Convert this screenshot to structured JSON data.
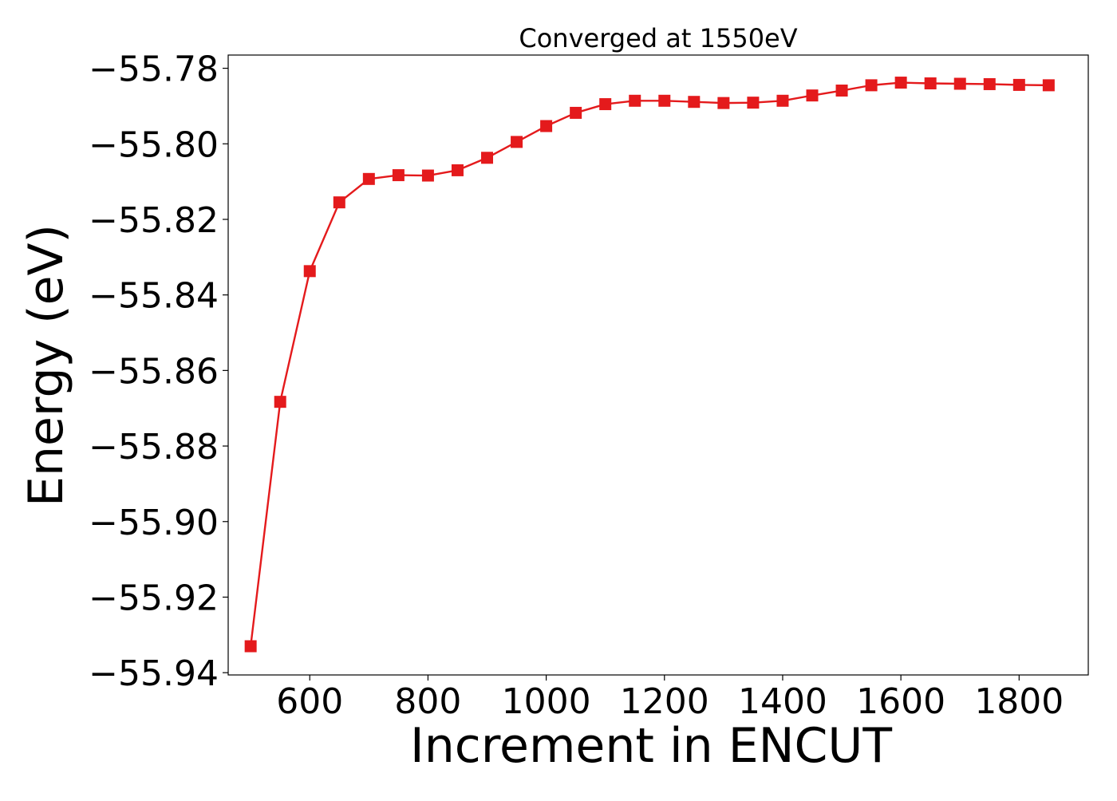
{
  "chart_data": {
    "type": "line",
    "title": "Converged at 1550eV",
    "xlabel": "Increment in ENCUT",
    "ylabel": "Energy (eV)",
    "xlim": [
      462,
      1917
    ],
    "ylim": [
      -55.9406,
      -55.7765
    ],
    "xticks": [
      600,
      800,
      1000,
      1200,
      1400,
      1600,
      1800
    ],
    "yticks": [
      -55.94,
      -55.92,
      -55.9,
      -55.88,
      -55.86,
      -55.84,
      -55.82,
      -55.8,
      -55.78
    ],
    "ytick_labels": [
      "−55.94",
      "−55.92",
      "−55.90",
      "−55.88",
      "−55.86",
      "−55.84",
      "−55.82",
      "−55.80",
      "−55.78"
    ],
    "grid": false,
    "series": [
      {
        "color": "#e41a1c",
        "marker": "square",
        "x": [
          500,
          550,
          600,
          650,
          700,
          750,
          800,
          850,
          900,
          950,
          1000,
          1050,
          1100,
          1150,
          1200,
          1250,
          1300,
          1350,
          1400,
          1450,
          1500,
          1550,
          1600,
          1650,
          1700,
          1750,
          1800,
          1850
        ],
        "values": [
          -55.933,
          -55.8683,
          -55.8337,
          -55.8155,
          -55.8093,
          -55.8083,
          -55.8084,
          -55.807,
          -55.8037,
          -55.7995,
          -55.7953,
          -55.7918,
          -55.7895,
          -55.7886,
          -55.7886,
          -55.7889,
          -55.7892,
          -55.7891,
          -55.7886,
          -55.7872,
          -55.7859,
          -55.7845,
          -55.7838,
          -55.784,
          -55.7841,
          -55.7842,
          -55.7844,
          -55.7845
        ]
      }
    ]
  }
}
